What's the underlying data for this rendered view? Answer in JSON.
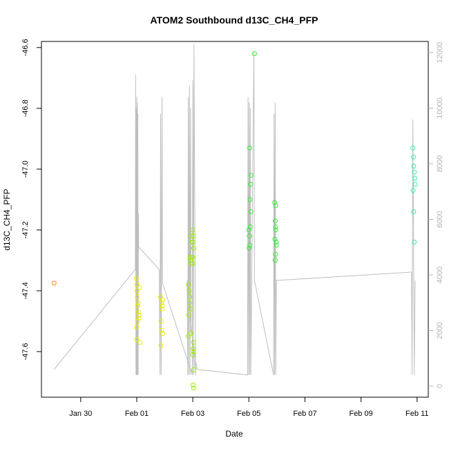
{
  "chart_data": {
    "type": "scatter",
    "title": "ATOM2 Southbound d13C_CH4_PFP",
    "xlabel": "Date",
    "ylabel": "d13C_CH4_PFP",
    "x_ticks": [
      "Jan 30",
      "Feb 01",
      "Feb 03",
      "Feb 05",
      "Feb 07",
      "Feb 09",
      "Feb 11"
    ],
    "x_tick_days": [
      30,
      32,
      34,
      36,
      38,
      40,
      42
    ],
    "xlim_days": [
      28.6,
      42.4
    ],
    "ylim": [
      -47.75,
      -46.58
    ],
    "y_ticks": [
      -46.6,
      -46.8,
      -47.0,
      -47.2,
      -47.4,
      -47.6
    ],
    "y_tick_labels": [
      "-46.6",
      "-46.8",
      "-47.0",
      "-47.2",
      "-47.4",
      "-47.6"
    ],
    "y2_label": "",
    "y2lim": [
      -400,
      12400
    ],
    "y2_ticks": [
      0,
      2000,
      4000,
      6000,
      8000,
      10000,
      12000
    ],
    "y2_tick_labels": [
      "0",
      "2000",
      "4000",
      "6000",
      "8000",
      "10000",
      "12000"
    ],
    "legend": "none",
    "grid": false,
    "colors": {
      "orange": "#ff8000",
      "yellow": "#e6ee00",
      "lime": "#99ee00",
      "green": "#33ee33",
      "cyan": "#33eeaa",
      "altitude_line": "#bebebe"
    },
    "series": [
      {
        "color": "orange",
        "points": [
          [
            29.05,
            -47.375
          ]
        ]
      },
      {
        "color": "yellow",
        "points": [
          [
            31.98,
            -47.36
          ],
          [
            32.0,
            -47.38
          ],
          [
            32.02,
            -47.42
          ],
          [
            32.05,
            -47.44
          ],
          [
            32.08,
            -47.48
          ],
          [
            32.03,
            -47.5
          ],
          [
            31.99,
            -47.52
          ],
          [
            32.06,
            -47.47
          ],
          [
            32.1,
            -47.39
          ],
          [
            32.0,
            -47.56
          ],
          [
            32.12,
            -47.57
          ],
          [
            32.04,
            -47.45
          ],
          [
            32.01,
            -47.4
          ],
          [
            32.07,
            -47.49
          ],
          [
            32.85,
            -47.42
          ],
          [
            32.88,
            -47.44
          ],
          [
            32.9,
            -47.46
          ],
          [
            32.87,
            -47.5
          ],
          [
            32.92,
            -47.43
          ],
          [
            32.89,
            -47.53
          ],
          [
            32.93,
            -47.54
          ],
          [
            32.86,
            -47.58
          ],
          [
            32.91,
            -47.45
          ]
        ]
      },
      {
        "color": "lime",
        "points": [
          [
            34.0,
            -47.2
          ],
          [
            34.02,
            -47.22
          ],
          [
            34.01,
            -47.24
          ],
          [
            34.03,
            -47.26
          ],
          [
            33.99,
            -47.29
          ],
          [
            34.0,
            -47.31
          ],
          [
            34.02,
            -47.57
          ],
          [
            34.01,
            -47.59
          ],
          [
            34.03,
            -47.6
          ],
          [
            34.0,
            -47.61
          ],
          [
            34.02,
            -47.66
          ],
          [
            34.01,
            -47.71
          ],
          [
            34.03,
            -47.72
          ],
          [
            33.85,
            -47.38
          ],
          [
            33.87,
            -47.4
          ],
          [
            33.89,
            -47.42
          ],
          [
            33.9,
            -47.29
          ],
          [
            33.92,
            -47.3
          ],
          [
            33.94,
            -47.22
          ],
          [
            33.96,
            -47.24
          ],
          [
            33.88,
            -47.44
          ],
          [
            33.91,
            -47.46
          ],
          [
            33.86,
            -47.48
          ],
          [
            33.93,
            -47.54
          ],
          [
            33.84,
            -47.55
          ],
          [
            33.95,
            -47.31
          ]
        ]
      },
      {
        "color": "green",
        "points": [
          [
            36.0,
            -47.2
          ],
          [
            36.02,
            -47.22
          ],
          [
            36.03,
            -47.25
          ],
          [
            36.01,
            -47.26
          ],
          [
            36.05,
            -47.19
          ],
          [
            36.07,
            -47.14
          ],
          [
            36.04,
            -47.1
          ],
          [
            36.06,
            -47.05
          ],
          [
            36.08,
            -47.02
          ],
          [
            36.03,
            -46.93
          ],
          [
            36.2,
            -46.62
          ],
          [
            36.92,
            -47.11
          ],
          [
            36.94,
            -47.17
          ],
          [
            36.95,
            -47.19
          ],
          [
            36.96,
            -47.2
          ],
          [
            36.93,
            -47.23
          ],
          [
            36.97,
            -47.24
          ],
          [
            36.98,
            -47.25
          ],
          [
            36.95,
            -47.28
          ],
          [
            36.94,
            -47.3
          ],
          [
            36.96,
            -47.12
          ]
        ]
      },
      {
        "color": "cyan",
        "points": [
          [
            41.85,
            -46.93
          ],
          [
            41.87,
            -46.96
          ],
          [
            41.88,
            -46.99
          ],
          [
            41.9,
            -47.01
          ],
          [
            41.92,
            -47.03
          ],
          [
            41.94,
            -47.05
          ],
          [
            41.86,
            -47.07
          ],
          [
            41.88,
            -47.14
          ],
          [
            41.9,
            -47.24
          ]
        ]
      }
    ],
    "altitude_series": {
      "color": "altitude_line",
      "points": [
        [
          29.05,
          600
        ],
        [
          31.95,
          4200
        ],
        [
          31.96,
          11200
        ],
        [
          31.97,
          400
        ],
        [
          31.98,
          10000
        ],
        [
          31.99,
          400
        ],
        [
          32.0,
          10400
        ],
        [
          32.01,
          400
        ],
        [
          32.02,
          10200
        ],
        [
          32.03,
          400
        ],
        [
          32.04,
          9800
        ],
        [
          32.05,
          400
        ],
        [
          32.06,
          6200
        ],
        [
          32.07,
          5000
        ],
        [
          32.8,
          4200
        ],
        [
          32.83,
          400
        ],
        [
          32.85,
          9800
        ],
        [
          32.87,
          400
        ],
        [
          32.9,
          10400
        ],
        [
          32.92,
          3700
        ],
        [
          33.98,
          400
        ],
        [
          34.0,
          11000
        ],
        [
          34.02,
          400
        ],
        [
          34.04,
          12300
        ],
        [
          34.1,
          400
        ],
        [
          33.8,
          3800
        ],
        [
          33.82,
          400
        ],
        [
          33.84,
          10400
        ],
        [
          33.86,
          400
        ],
        [
          33.88,
          10800
        ],
        [
          33.9,
          400
        ],
        [
          33.92,
          10000
        ],
        [
          33.94,
          2000
        ],
        [
          34.15,
          600
        ],
        [
          35.95,
          400
        ],
        [
          35.97,
          10400
        ],
        [
          35.99,
          400
        ],
        [
          36.01,
          10200
        ],
        [
          36.03,
          400
        ],
        [
          36.05,
          10000
        ],
        [
          36.07,
          400
        ],
        [
          36.1,
          3600
        ],
        [
          36.18,
          12000
        ],
        [
          36.2,
          3800
        ],
        [
          36.88,
          400
        ],
        [
          36.9,
          9800
        ],
        [
          36.92,
          400
        ],
        [
          36.94,
          10200
        ],
        [
          36.96,
          400
        ],
        [
          36.98,
          3800
        ],
        [
          41.8,
          4100
        ],
        [
          41.82,
          400
        ],
        [
          41.85,
          9600
        ],
        [
          41.9,
          400
        ],
        [
          41.93,
          3800
        ]
      ]
    }
  }
}
